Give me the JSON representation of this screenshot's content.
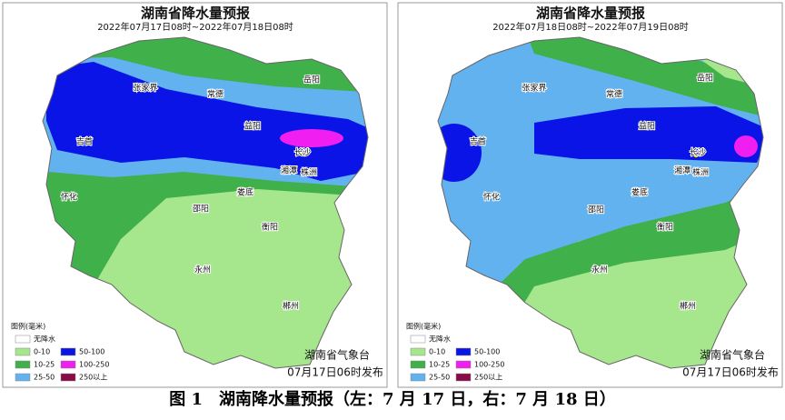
{
  "maps": [
    {
      "title": "湖南省降水量预报",
      "subtitle": "2022年07月17日08时~2022年07月18日08时",
      "cities": [
        "岳阳",
        "张家界",
        "常德",
        "益阳",
        "吉首",
        "长沙",
        "湘潭",
        "株洲",
        "怀化",
        "娄底",
        "邵阳",
        "衡阳",
        "永州",
        "郴州"
      ],
      "legend_title": "图例(毫米)",
      "legend": [
        {
          "label": "无降水",
          "color": "#ffffff"
        },
        {
          "label": "0-10",
          "color": "#a6e68c"
        },
        {
          "label": "50-100",
          "color": "#0a14e6"
        },
        {
          "label": "10-25",
          "color": "#3fb04a"
        },
        {
          "label": "100-250",
          "color": "#f01ef0"
        },
        {
          "label": "25-50",
          "color": "#62b2f0"
        },
        {
          "label": "250以上",
          "color": "#880a46"
        }
      ],
      "publisher": "湖南省气象台",
      "issued": "07月17日06时发布"
    },
    {
      "title": "湖南省降水量预报",
      "subtitle": "2022年07月18日08时~2022年07月19日08时",
      "cities": [
        "岳阳",
        "张家界",
        "常德",
        "益阳",
        "吉首",
        "长沙",
        "湘潭",
        "株洲",
        "怀化",
        "娄底",
        "邵阳",
        "衡阳",
        "永州",
        "郴州"
      ],
      "legend_title": "图例(毫米)",
      "legend": [
        {
          "label": "无降水",
          "color": "#ffffff"
        },
        {
          "label": "0-10",
          "color": "#a6e68c"
        },
        {
          "label": "50-100",
          "color": "#0a14e6"
        },
        {
          "label": "10-25",
          "color": "#3fb04a"
        },
        {
          "label": "100-250",
          "color": "#f01ef0"
        },
        {
          "label": "25-50",
          "color": "#62b2f0"
        },
        {
          "label": "250以上",
          "color": "#880a46"
        }
      ],
      "publisher": "湖南省气象台",
      "issued": "07月17日06时发布"
    }
  ],
  "caption": "图 1　湖南降水量预报（左：7 月 17 日，右：7 月 18 日）"
}
